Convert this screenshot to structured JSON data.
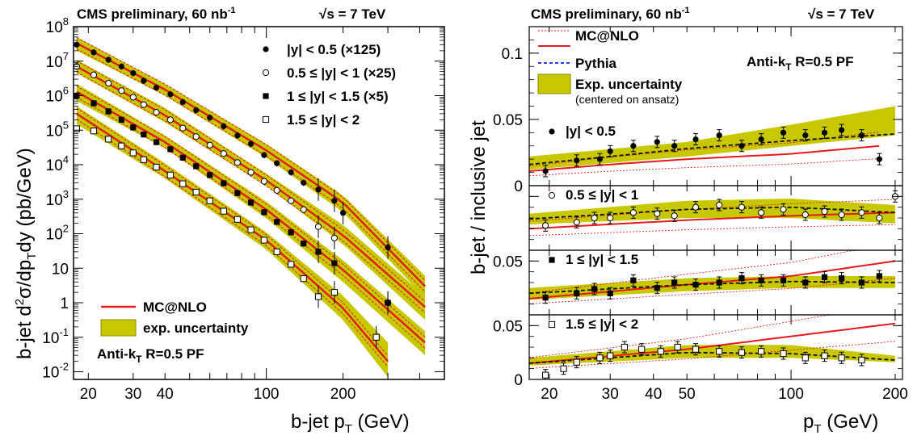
{
  "header": {
    "left_experiment": "CMS preliminary, 60 nb",
    "left_exp_sup": "-1",
    "left_energy": "s = 7 TeV",
    "right_experiment": "CMS preliminary, 60 nb",
    "right_exp_sup": "-1",
    "right_energy": "s = 7 TeV"
  },
  "colors": {
    "band": "#c8c800",
    "band_edge": "#8c8c00",
    "mc": "#e41a1c",
    "pythia": "#2040e0"
  },
  "chart_data": [
    {
      "type": "line",
      "xscale": "log",
      "yscale": "log",
      "xlim": [
        17.5,
        500
      ],
      "ylim": [
        0.006,
        100000000
      ],
      "xlabel": "b-jet p",
      "xlabel_sub": "T",
      "xlabel_unit": "(GeV)",
      "ylabel": "b-jet d²σ/dp_Tdy (pb/GeV)",
      "xticks": [
        20,
        30,
        40,
        100,
        200
      ],
      "xtick_labels": [
        "20",
        "30",
        "40",
        "100",
        "200"
      ],
      "yticks": [
        0.01,
        0.1,
        1,
        10,
        100,
        1000,
        10000,
        100000,
        1000000,
        10000000,
        100000000
      ],
      "ytick_labels": [
        {
          "base": "10",
          "exp": "-2"
        },
        {
          "base": "10",
          "exp": "-1"
        },
        {
          "base": "1",
          "exp": ""
        },
        {
          "base": "10",
          "exp": ""
        },
        {
          "base": "10",
          "exp": "2"
        },
        {
          "base": "10",
          "exp": "3"
        },
        {
          "base": "10",
          "exp": "4"
        },
        {
          "base": "10",
          "exp": "5"
        },
        {
          "base": "10",
          "exp": "6"
        },
        {
          "base": "10",
          "exp": "7"
        },
        {
          "base": "10",
          "exp": "8"
        }
      ],
      "legend_data": [
        {
          "marker": "filled-circle",
          "label": "|y| < 0.5 (×125)"
        },
        {
          "marker": "open-circle",
          "label": "0.5 ≤ |y| < 1 (×25)"
        },
        {
          "marker": "filled-square",
          "label": "1 ≤ |y| < 1.5 (×5)"
        },
        {
          "marker": "open-square",
          "label": "1.5 ≤ |y| < 2"
        }
      ],
      "legend_bottom": [
        {
          "style": "line",
          "label": "MC@NLO"
        },
        {
          "style": "band",
          "label": "exp. uncertainty"
        }
      ],
      "annotation": {
        "text": "Anti-k",
        "sub": "T",
        "rest": " R=0.5 PF"
      },
      "series": [
        {
          "marker": "filled-circle",
          "x": [
            18,
            21,
            24,
            27,
            30,
            33,
            37,
            42,
            47,
            53,
            60,
            68,
            77,
            87,
            98,
            110,
            125,
            140,
            160,
            185,
            200,
            300
          ],
          "y": [
            30000000,
            18000000,
            11000000,
            7000000,
            4500000,
            2700000,
            1700000,
            1100000,
            650000,
            380000,
            230000,
            130000,
            70000,
            40000,
            19000,
            11000,
            6000,
            3000,
            1900,
            900,
            400,
            40
          ],
          "band_x": [
            18,
            40,
            100,
            200,
            420
          ],
          "band_lo": [
            20000000,
            1000000,
            16000,
            420,
            1.4
          ],
          "band_hi": [
            50000000,
            2200000,
            40000,
            1300,
            6
          ],
          "mc_x": [
            18,
            40,
            100,
            200,
            420
          ],
          "mc_y": [
            33000000,
            1500000,
            26000,
            800,
            3
          ]
        },
        {
          "marker": "open-circle",
          "x": [
            18,
            21,
            24,
            27,
            30,
            33,
            37,
            42,
            47,
            53,
            60,
            68,
            77,
            87,
            98,
            110,
            125,
            140,
            160,
            185,
            300
          ],
          "y": [
            7000000,
            4000000,
            2300000,
            1400000,
            900000,
            550000,
            330000,
            200000,
            115000,
            65000,
            37000,
            21000,
            11500,
            6000,
            3300,
            1800,
            900,
            500,
            160,
            75,
            1
          ],
          "band_x": [
            18,
            40,
            100,
            200,
            420
          ],
          "band_lo": [
            4500000,
            170000,
            2400,
            50,
            0.32
          ],
          "band_hi": [
            11000000,
            440000,
            5500,
            180,
            1.6
          ],
          "mc_x": [
            18,
            40,
            100,
            200,
            420
          ],
          "mc_y": [
            7000000,
            270000,
            3500,
            90,
            0.75
          ]
        },
        {
          "marker": "filled-square",
          "x": [
            18,
            21,
            24,
            27,
            30,
            33,
            37,
            42,
            47,
            53,
            60,
            68,
            77,
            87,
            98,
            110,
            125,
            140,
            160,
            185,
            300
          ],
          "y": [
            1000000,
            600000,
            350000,
            200000,
            120000,
            75000,
            45000,
            28000,
            16000,
            9000,
            5000,
            2900,
            1500,
            800,
            420,
            220,
            110,
            52,
            30,
            14,
            1
          ],
          "band_x": [
            18,
            40,
            100,
            200,
            420
          ],
          "band_lo": [
            700000,
            30000,
            280,
            4,
            0.03
          ],
          "band_hi": [
            2200000,
            70000,
            850,
            17,
            0.15
          ],
          "mc_x": [
            18,
            40,
            100,
            200,
            420
          ],
          "mc_y": [
            1300000,
            45000,
            500,
            9,
            0.07
          ]
        },
        {
          "marker": "open-square",
          "x": [
            18,
            21,
            24,
            27,
            30,
            33,
            37,
            42,
            47,
            53,
            60,
            68,
            77,
            87,
            98,
            110,
            125,
            140,
            160,
            185,
            270
          ],
          "y": [
            110000,
            95000,
            55000,
            35000,
            22000,
            14000,
            8500,
            5000,
            2800,
            1600,
            900,
            450,
            260,
            130,
            65,
            30,
            13,
            5,
            1.5,
            2,
            0.1
          ],
          "band_x": [
            18,
            40,
            100,
            200,
            300
          ],
          "band_lo": [
            150000,
            4000,
            35,
            0.32,
            0.007
          ],
          "band_hi": [
            500000,
            11000,
            110,
            1.6,
            0.07
          ],
          "mc_x": [
            18,
            40,
            100,
            200,
            300
          ],
          "mc_y": [
            300000,
            6500,
            65,
            0.7,
            0.02
          ]
        }
      ]
    },
    {
      "type": "line",
      "xscale": "log",
      "xlim": [
        17.5,
        210
      ],
      "xlabel": "p",
      "xlabel_sub": "T",
      "xlabel_unit": "(GeV)",
      "ylabel": "b-jet / inclusive jet",
      "xticks": [
        20,
        30,
        40,
        50,
        100,
        200
      ],
      "xtick_labels": [
        "20",
        "30",
        "40",
        "50",
        "100",
        "200"
      ],
      "ytick_labels_top": [
        "0.1",
        "0.05",
        "0"
      ],
      "ytick_label_mid1": "0.05",
      "ytick_label_mid2": "0.05",
      "ytick_label_bottom": "0",
      "legend_top": [
        {
          "style": "dotted-red",
          "label": ""
        },
        {
          "style": "line-red",
          "label": "MC@NLO"
        },
        {
          "style": "dashed-blue",
          "label": "Pythia"
        },
        {
          "style": "band",
          "label": "Exp. uncertainty"
        }
      ],
      "legend_note": "(centered on ansatz)",
      "annotation": {
        "text": "Anti-k",
        "sub": "T",
        "rest": " R=0.5 PF"
      },
      "panels": [
        {
          "label": "|y| < 0.5",
          "marker": "filled-circle",
          "ylim": [
            0,
            0.12
          ],
          "yticks": [
            0,
            0.05,
            0.1
          ],
          "x": [
            19.5,
            24,
            28,
            30,
            35,
            41,
            46,
            53,
            62,
            72,
            82,
            95,
            110,
            125,
            140,
            160,
            180
          ],
          "y": [
            0.011,
            0.019,
            0.02,
            0.026,
            0.03,
            0.033,
            0.03,
            0.035,
            0.038,
            0.03,
            0.035,
            0.04,
            0.038,
            0.04,
            0.042,
            0.038,
            0.02
          ],
          "band_x": [
            17.5,
            50,
            100,
            200
          ],
          "band_lo": [
            0.012,
            0.022,
            0.03,
            0.038
          ],
          "band_hi": [
            0.022,
            0.033,
            0.046,
            0.06
          ],
          "pythia_x": [
            17.5,
            30,
            50,
            100,
            200
          ],
          "pythia_y": [
            0.016,
            0.022,
            0.028,
            0.034,
            0.039
          ],
          "mc_x": [
            17.5,
            30,
            50,
            100,
            180
          ],
          "mc_y": [
            0.011,
            0.016,
            0.02,
            0.024,
            0.03
          ]
        },
        {
          "label": "0.5 ≤ |y| < 1",
          "marker": "open-circle",
          "ylim": [
            0,
            0.06
          ],
          "x": [
            19.5,
            24,
            27,
            30,
            35,
            41,
            46,
            53,
            62,
            72,
            82,
            95,
            110,
            125,
            140,
            160,
            180,
            200
          ],
          "y": [
            0.023,
            0.026,
            0.03,
            0.03,
            0.035,
            0.034,
            0.032,
            0.04,
            0.042,
            0.04,
            0.035,
            0.038,
            0.033,
            0.036,
            0.033,
            0.035,
            0.03,
            0.05
          ],
          "band_x": [
            17.5,
            50,
            100,
            200
          ],
          "band_lo": [
            0.024,
            0.03,
            0.03,
            0.025
          ],
          "band_hi": [
            0.034,
            0.046,
            0.048,
            0.042
          ],
          "pythia_x": [
            17.5,
            50,
            100,
            200
          ],
          "pythia_y": [
            0.029,
            0.038,
            0.04,
            0.035
          ],
          "mc_x": [
            17.5,
            50,
            100,
            200
          ],
          "mc_y": [
            0.02,
            0.028,
            0.032,
            0.035
          ]
        },
        {
          "label": "1 ≤ |y| < 1.5",
          "marker": "filled-square",
          "ylim": [
            0,
            0.06
          ],
          "x": [
            19.5,
            24,
            27,
            30,
            35,
            41,
            46,
            53,
            62,
            72,
            82,
            95,
            110,
            125,
            140,
            160,
            180
          ],
          "y": [
            0.016,
            0.02,
            0.024,
            0.02,
            0.032,
            0.025,
            0.03,
            0.028,
            0.03,
            0.034,
            0.032,
            0.032,
            0.03,
            0.035,
            0.034,
            0.03,
            0.036
          ],
          "band_x": [
            17.5,
            50,
            100,
            200
          ],
          "band_lo": [
            0.014,
            0.022,
            0.025,
            0.025
          ],
          "band_hi": [
            0.025,
            0.034,
            0.036,
            0.036
          ],
          "pythia_x": [
            17.5,
            50,
            100,
            200
          ],
          "pythia_y": [
            0.02,
            0.028,
            0.031,
            0.03
          ],
          "mc_x": [
            17.5,
            50,
            100,
            200
          ],
          "mc_y": [
            0.015,
            0.028,
            0.036,
            0.05
          ]
        },
        {
          "label": "1.5 ≤ |y| < 2",
          "marker": "open-square",
          "ylim": [
            0,
            0.06
          ],
          "x": [
            19.5,
            22,
            24,
            28,
            30,
            33,
            37,
            42,
            47,
            53,
            62,
            72,
            82,
            95,
            110,
            125,
            140,
            160
          ],
          "y": [
            0.004,
            0.01,
            0.016,
            0.02,
            0.022,
            0.03,
            0.028,
            0.026,
            0.03,
            0.028,
            0.026,
            0.025,
            0.026,
            0.024,
            0.02,
            0.022,
            0.02,
            0.018
          ],
          "band_x": [
            17.5,
            50,
            100,
            200
          ],
          "band_lo": [
            0.013,
            0.02,
            0.02,
            0.016
          ],
          "band_hi": [
            0.02,
            0.032,
            0.032,
            0.022
          ],
          "pythia_x": [
            17.5,
            50,
            100,
            200
          ],
          "pythia_y": [
            0.015,
            0.025,
            0.024,
            0.018
          ],
          "mc_x": [
            17.5,
            50,
            100,
            200
          ],
          "mc_y": [
            0.015,
            0.028,
            0.04,
            0.052
          ]
        }
      ]
    }
  ]
}
